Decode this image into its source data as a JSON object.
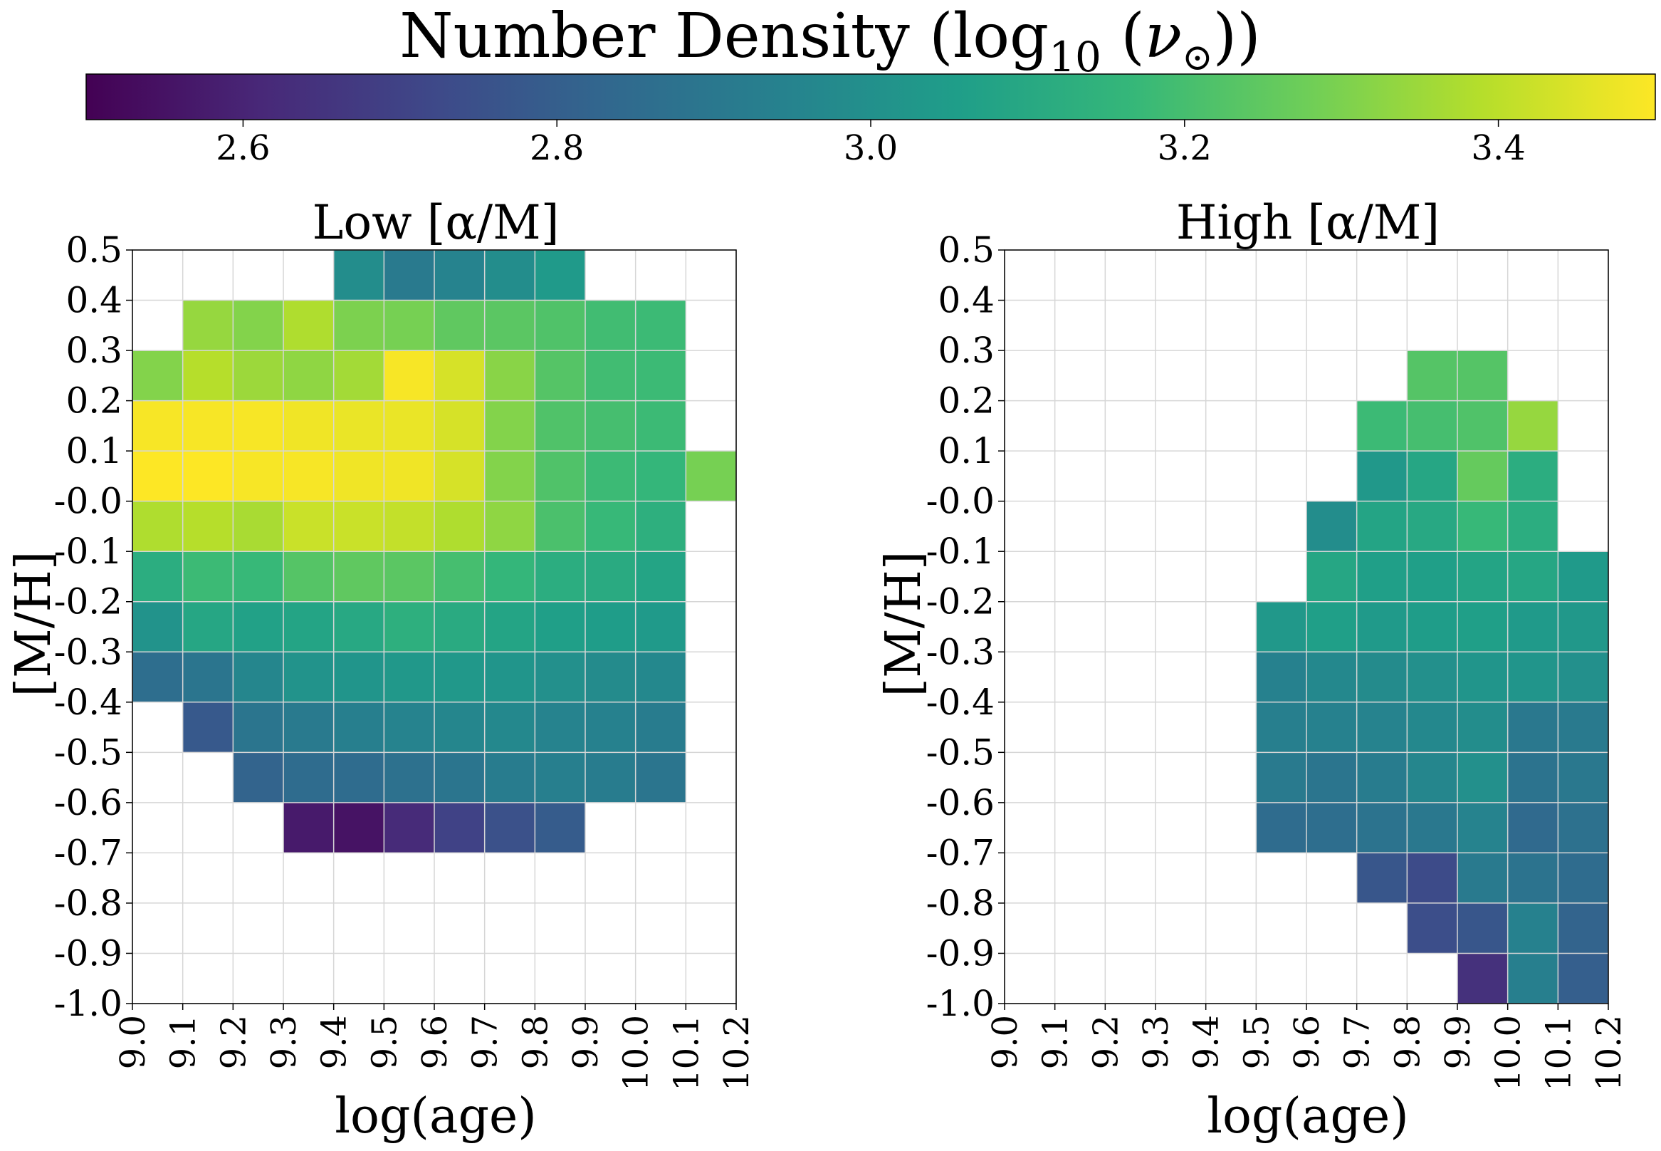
{
  "chart_data": {
    "type": "heatmap",
    "colorbar": {
      "title_prefix": "Number Density (log",
      "title_sub": "10",
      "title_open": " (",
      "title_symbol": "ν",
      "title_sub2": "⊙",
      "title_close": "))",
      "range": [
        2.5,
        3.5
      ],
      "ticks": [
        "2.6",
        "2.8",
        "3.0",
        "3.2",
        "3.4"
      ],
      "tick_values": [
        2.6,
        2.8,
        3.0,
        3.2,
        3.4
      ],
      "colormap": "viridis",
      "colormap_stops": [
        "#440154",
        "#482878",
        "#3e4989",
        "#31688e",
        "#26828e",
        "#1f9e89",
        "#35b779",
        "#6ece58",
        "#b5de2b",
        "#fde725"
      ],
      "placement": "top"
    },
    "panels": [
      {
        "title": "Low [α/M]",
        "xlabel": "log(age)",
        "ylabel": "[M/H]",
        "x_edges": [
          9.0,
          9.1,
          9.2,
          9.3,
          9.4,
          9.5,
          9.6,
          9.7,
          9.8,
          9.9,
          10.0,
          10.1,
          10.2
        ],
        "y_edges": [
          -1.0,
          -0.9,
          -0.8,
          -0.7,
          -0.6,
          -0.5,
          -0.4,
          -0.3,
          -0.2,
          -0.1,
          0.0,
          0.1,
          0.2,
          0.3,
          0.4,
          0.5
        ],
        "x_tick_labels": [
          "9.0",
          "9.1",
          "9.2",
          "9.3",
          "9.4",
          "9.5",
          "9.6",
          "9.7",
          "9.8",
          "9.9",
          "10.0",
          "10.1",
          "10.2"
        ],
        "y_tick_labels": [
          "-1.0",
          "-0.9",
          "-0.8",
          "-0.7",
          "-0.6",
          "-0.5",
          "-0.4",
          "-0.3",
          "-0.2",
          "-0.1",
          "-0.0",
          "0.1",
          "0.2",
          "0.3",
          "0.4",
          "0.5"
        ],
        "values_top_to_bottom": [
          [
            null,
            null,
            null,
            null,
            2.99,
            2.91,
            2.95,
            2.99,
            3.04,
            null,
            null,
            null
          ],
          [
            null,
            3.34,
            3.31,
            3.38,
            3.3,
            3.29,
            3.25,
            3.24,
            3.22,
            3.19,
            3.18,
            null
          ],
          [
            3.31,
            3.39,
            3.35,
            3.33,
            3.36,
            3.49,
            3.44,
            3.32,
            3.23,
            3.19,
            3.18,
            null
          ],
          [
            3.49,
            3.49,
            3.49,
            3.48,
            3.47,
            3.47,
            3.44,
            3.31,
            3.22,
            3.2,
            3.18,
            null
          ],
          [
            3.5,
            3.5,
            3.49,
            3.49,
            3.48,
            3.48,
            3.44,
            3.31,
            3.22,
            3.18,
            3.16,
            3.29
          ],
          [
            3.38,
            3.39,
            3.37,
            3.42,
            3.42,
            3.41,
            3.38,
            3.33,
            3.21,
            3.17,
            3.13,
            null
          ],
          [
            3.12,
            3.18,
            3.17,
            3.23,
            3.25,
            3.24,
            3.2,
            3.16,
            3.12,
            3.11,
            3.08,
            null
          ],
          [
            3.01,
            3.09,
            3.07,
            3.08,
            3.1,
            3.13,
            3.11,
            3.08,
            3.06,
            3.05,
            3.04,
            null
          ],
          [
            2.86,
            2.89,
            2.96,
            3.01,
            3.02,
            3.03,
            3.03,
            3.02,
            3.0,
            2.98,
            2.97,
            null
          ],
          [
            null,
            2.78,
            2.89,
            2.91,
            2.93,
            2.95,
            2.96,
            2.97,
            2.95,
            2.94,
            2.92,
            null
          ],
          [
            null,
            null,
            2.82,
            2.85,
            2.85,
            2.87,
            2.89,
            2.92,
            2.93,
            2.92,
            2.89,
            null
          ],
          [
            null,
            null,
            null,
            2.57,
            2.55,
            2.62,
            2.7,
            2.75,
            2.79,
            null,
            null,
            null
          ],
          [
            null,
            null,
            null,
            null,
            null,
            null,
            null,
            null,
            null,
            null,
            null,
            null
          ],
          [
            null,
            null,
            null,
            null,
            null,
            null,
            null,
            null,
            null,
            null,
            null,
            null
          ],
          [
            null,
            null,
            null,
            null,
            null,
            null,
            null,
            null,
            null,
            null,
            null,
            null
          ]
        ]
      },
      {
        "title": "High [α/M]",
        "xlabel": "log(age)",
        "ylabel": "[M/H]",
        "x_edges": [
          9.0,
          9.1,
          9.2,
          9.3,
          9.4,
          9.5,
          9.6,
          9.7,
          9.8,
          9.9,
          10.0,
          10.1,
          10.2
        ],
        "y_edges": [
          -1.0,
          -0.9,
          -0.8,
          -0.7,
          -0.6,
          -0.5,
          -0.4,
          -0.3,
          -0.2,
          -0.1,
          0.0,
          0.1,
          0.2,
          0.3,
          0.4,
          0.5
        ],
        "x_tick_labels": [
          "9.0",
          "9.1",
          "9.2",
          "9.3",
          "9.4",
          "9.5",
          "9.6",
          "9.7",
          "9.8",
          "9.9",
          "10.0",
          "10.1",
          "10.2"
        ],
        "y_tick_labels": [
          "-1.0",
          "-0.9",
          "-0.8",
          "-0.7",
          "-0.6",
          "-0.5",
          "-0.4",
          "-0.3",
          "-0.2",
          "-0.1",
          "-0.0",
          "0.1",
          "0.2",
          "0.3",
          "0.4",
          "0.5"
        ],
        "values_top_to_bottom": [
          [
            null,
            null,
            null,
            null,
            null,
            null,
            null,
            null,
            null,
            null,
            null,
            null
          ],
          [
            null,
            null,
            null,
            null,
            null,
            null,
            null,
            null,
            null,
            null,
            null,
            null
          ],
          [
            null,
            null,
            null,
            null,
            null,
            null,
            null,
            null,
            3.23,
            3.23,
            null,
            null
          ],
          [
            null,
            null,
            null,
            null,
            null,
            null,
            null,
            3.18,
            3.2,
            3.22,
            3.34,
            null
          ],
          [
            null,
            null,
            null,
            null,
            null,
            null,
            null,
            3.03,
            3.09,
            3.26,
            3.12,
            null
          ],
          [
            null,
            null,
            null,
            null,
            null,
            null,
            2.99,
            3.08,
            3.1,
            3.17,
            3.12,
            null
          ],
          [
            null,
            null,
            null,
            null,
            null,
            null,
            3.09,
            3.06,
            3.06,
            3.08,
            3.09,
            3.04
          ],
          [
            null,
            null,
            null,
            null,
            null,
            3.03,
            3.06,
            3.04,
            3.05,
            3.06,
            3.04,
            3.03
          ],
          [
            null,
            null,
            null,
            null,
            null,
            2.94,
            2.97,
            2.98,
            3.0,
            3.02,
            3.02,
            3.0
          ],
          [
            null,
            null,
            null,
            null,
            null,
            2.93,
            2.94,
            2.95,
            2.97,
            2.99,
            2.9,
            2.91
          ],
          [
            null,
            null,
            null,
            null,
            null,
            2.91,
            2.89,
            2.92,
            2.96,
            3.0,
            2.88,
            2.9
          ],
          [
            null,
            null,
            null,
            null,
            null,
            2.85,
            2.86,
            2.88,
            2.9,
            2.95,
            2.84,
            2.87
          ],
          [
            null,
            null,
            null,
            null,
            null,
            null,
            null,
            2.77,
            2.73,
            2.91,
            2.88,
            2.85
          ],
          [
            null,
            null,
            null,
            null,
            null,
            null,
            null,
            null,
            2.74,
            2.77,
            2.94,
            2.82
          ],
          [
            null,
            null,
            null,
            null,
            null,
            null,
            null,
            null,
            null,
            2.64,
            2.93,
            2.8
          ]
        ]
      }
    ]
  }
}
